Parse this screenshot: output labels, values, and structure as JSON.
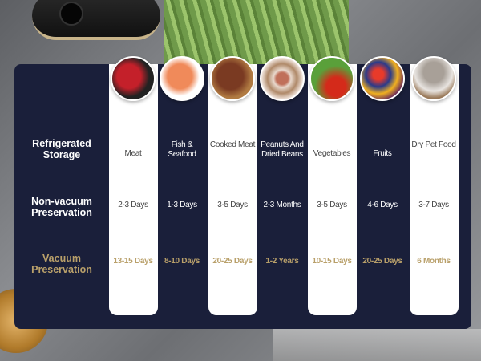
{
  "row_labels": {
    "storage": "Refrigerated Storage",
    "non_vacuum": "Non-vacuum Preservation",
    "vacuum": "Vacuum Preservation"
  },
  "colors": {
    "panel": "#1a1f3a",
    "gold": "#b9a06a",
    "white": "#ffffff"
  },
  "columns": [
    {
      "food": "Meat",
      "non_vacuum": "2-3 Days",
      "vacuum": "13-15 Days",
      "image": "raw-meat",
      "light": true
    },
    {
      "food": "Fish & Seafood",
      "non_vacuum": "1-3 Days",
      "vacuum": "8-10 Days",
      "image": "salmon",
      "light": false
    },
    {
      "food": "Cooked Meat",
      "non_vacuum": "3-5 Days",
      "vacuum": "20-25 Days",
      "image": "steak",
      "light": true
    },
    {
      "food": "Peanuts And Dried Beans",
      "non_vacuum": "2-3 Months",
      "vacuum": "1-2 Years",
      "image": "beans",
      "light": false
    },
    {
      "food": "Vegetables",
      "non_vacuum": "3-5 Days",
      "vacuum": "10-15 Days",
      "image": "vegetables",
      "light": true
    },
    {
      "food": "Fruits",
      "non_vacuum": "4-6 Days",
      "vacuum": "20-25 Days",
      "image": "fruits",
      "light": false
    },
    {
      "food": "Dry Pet Food",
      "non_vacuum": "3-7 Days",
      "vacuum": "6 Months",
      "image": "cat",
      "light": true
    }
  ]
}
